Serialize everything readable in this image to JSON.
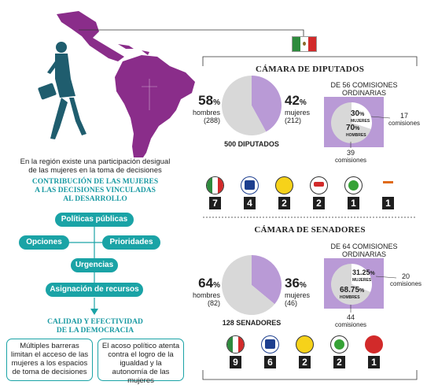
{
  "left": {
    "caption_line1": "En la región existe una participación desigual",
    "caption_line2": "de las mujeres en la toma de decisiones",
    "contrib_title_line1": "CONTRIBUCIÓN DE LAS MUJERES",
    "contrib_title_line2": "A LAS DECISIONES VINCULADAS",
    "contrib_title_line3": "AL DESARROLLO",
    "flow": {
      "policies": "Políticas públicas",
      "options": "Opciones",
      "priorities": "Prioridades",
      "urgencies": "Urgencias",
      "resources": "Asignación de recursos"
    },
    "quality_title_line1": "CALIDAD Y EFECTIVIDAD",
    "quality_title_line2": "DE LA DEMOCRACIA",
    "box1": "Múltiples barreras limitan el acceso de las mujeres a los espacios de toma de decisiones",
    "box2": "El acoso político atenta contra el logro de la igualdad y la autonomía de las mujeres"
  },
  "colors": {
    "teal": "#1aa3a6",
    "purple": "#b99ad6",
    "map_purple": "#8a2d8a",
    "gray": "#d8d8d8"
  },
  "chart_data": [
    {
      "type": "pie",
      "title": "CÁMARA DE DIPUTADOS",
      "total_label": "500 DIPUTADOS",
      "slices": [
        {
          "name": "hombres",
          "percent": 58,
          "count": 288
        },
        {
          "name": "mujeres",
          "percent": 42,
          "count": 212
        }
      ],
      "commissions": {
        "title_line1": "DE 56 COMISIONES",
        "title_line2": "ORDINARIAS",
        "slices": [
          {
            "name": "MUJERES",
            "percent": 30,
            "count": 17
          },
          {
            "name": "HOMBRES",
            "percent": 70,
            "count": 39
          }
        ],
        "count_unit": "comisiones"
      },
      "party_counts": [
        7,
        4,
        2,
        2,
        1,
        1
      ]
    },
    {
      "type": "pie",
      "title": "CÁMARA DE SENADORES",
      "total_label": "128 SENADORES",
      "slices": [
        {
          "name": "hombres",
          "percent": 64,
          "count": 82
        },
        {
          "name": "mujeres",
          "percent": 36,
          "count": 46
        }
      ],
      "commissions": {
        "title_line1": "DE 64 COMISIONES",
        "title_line2": "ORDINARIAS",
        "slices": [
          {
            "name": "MUJERES",
            "percent": 31.25,
            "count": 20
          },
          {
            "name": "HOMBRES",
            "percent": 68.75,
            "count": 44
          }
        ],
        "count_unit": "comisiones"
      },
      "party_counts": [
        9,
        6,
        2,
        2,
        1
      ]
    }
  ],
  "labels": {
    "dip_men_pct": "58",
    "dip_men_word": "hombres",
    "dip_men_count": "(288)",
    "dip_women_pct": "42",
    "dip_women_word": "mujeres",
    "dip_women_count": "(212)",
    "dip_com_women_pct": "30",
    "dip_com_men_pct": "70",
    "dip_com_women_n": "17",
    "dip_com_men_n": "39",
    "sen_men_pct": "64",
    "sen_men_word": "hombres",
    "sen_men_count": "(82)",
    "sen_women_pct": "36",
    "sen_women_word": "mujeres",
    "sen_women_count": "(46)",
    "sen_com_women_pct": "31.25",
    "sen_com_men_pct": "68.75",
    "sen_com_women_n": "20",
    "sen_com_men_n": "44",
    "pct": "%",
    "mujeres_caps": "MUJERES",
    "hombres_caps": "HOMBRES",
    "comisiones": "comisiones"
  },
  "parties_dip": [
    "PRI",
    "PAN",
    "PRD",
    "PVEM",
    "MC",
    "PANAL"
  ],
  "parties_sen": [
    "PRI",
    "PAN",
    "PRD",
    "MC",
    "PT"
  ]
}
